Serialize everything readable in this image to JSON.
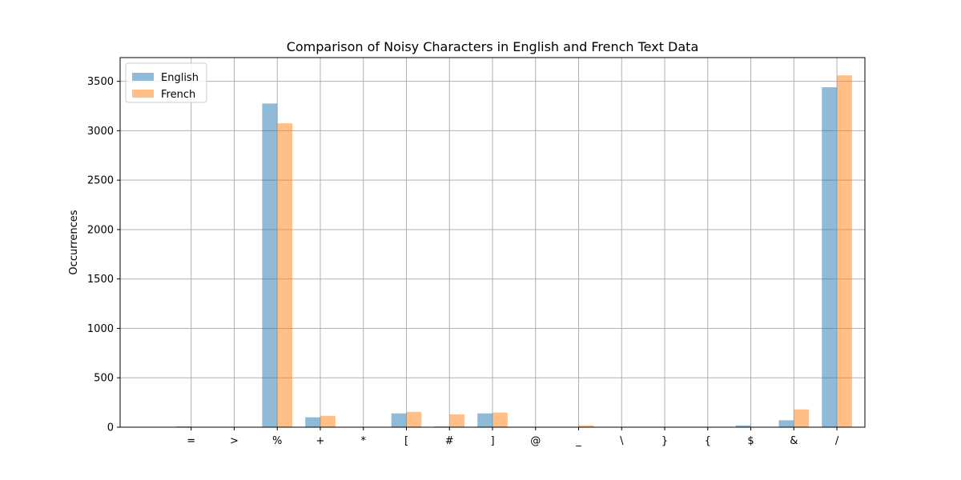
{
  "chart_data": {
    "type": "bar",
    "title": "Comparison of Noisy Characters in English and French Text Data",
    "xlabel": "",
    "ylabel": "Occurrences",
    "categories": [
      "=",
      ">",
      "%",
      "+",
      "*",
      "[",
      "#",
      "]",
      "@",
      "_",
      "\\",
      "}",
      "{",
      "$",
      "&",
      "/"
    ],
    "series": [
      {
        "name": "English",
        "color": "#1f77b4",
        "opacity": 0.5,
        "values": [
          8,
          1,
          3275,
          100,
          1,
          140,
          8,
          140,
          1,
          4,
          1,
          1,
          1,
          18,
          70,
          3440
        ]
      },
      {
        "name": "French",
        "color": "#ff7f0e",
        "opacity": 0.5,
        "values": [
          1,
          1,
          3075,
          115,
          1,
          155,
          130,
          148,
          1,
          18,
          1,
          1,
          1,
          3,
          180,
          3560
        ]
      }
    ],
    "ylim": [
      0,
      3740
    ],
    "yticks": [
      0,
      500,
      1000,
      1500,
      2000,
      2500,
      3000,
      3500
    ],
    "grid": true,
    "legend": "top-left"
  }
}
